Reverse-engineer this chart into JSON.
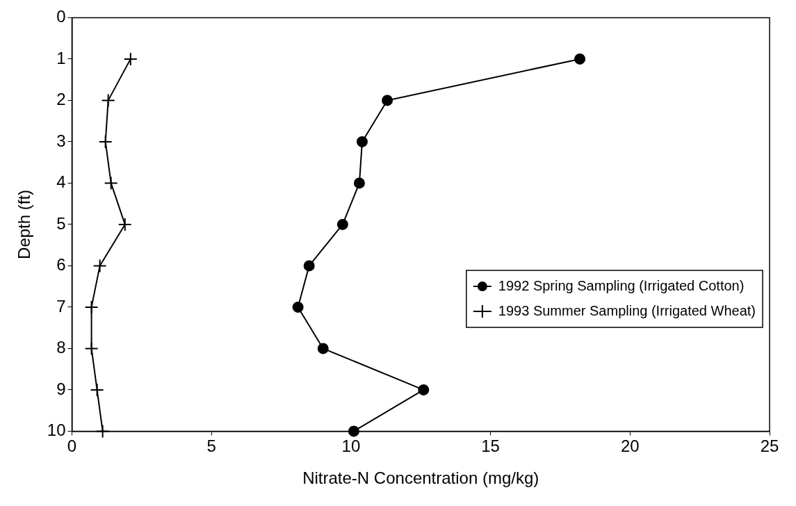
{
  "chart_data": {
    "type": "line",
    "xlabel": "Nitrate-N Concentration (mg/kg)",
    "ylabel": "Depth (ft)",
    "xlim": [
      0,
      25
    ],
    "xticks": [
      0,
      5,
      10,
      15,
      20,
      25
    ],
    "ylim": [
      10,
      0
    ],
    "yticks": [
      0,
      1,
      2,
      3,
      4,
      5,
      6,
      7,
      8,
      9,
      10
    ],
    "legend": "right",
    "grid": false,
    "series": [
      {
        "name": "1992 Spring Sampling (Irrigated Cotton)",
        "color": "#000000",
        "marker": "circle",
        "x": [
          18.2,
          11.3,
          10.4,
          10.3,
          9.7,
          8.5,
          8.1,
          9.0,
          12.6,
          10.1
        ],
        "values": [
          1,
          2,
          3,
          4,
          5,
          6,
          7,
          8,
          9,
          10
        ]
      },
      {
        "name": "1993 Summer Sampling (Irrigated Wheat)",
        "color": "#000000",
        "marker": "cross",
        "x": [
          2.1,
          1.3,
          1.2,
          1.4,
          1.9,
          1.0,
          0.7,
          0.7,
          0.9,
          1.1
        ],
        "values": [
          1,
          2,
          3,
          4,
          5,
          6,
          7,
          8,
          9,
          10
        ]
      }
    ]
  }
}
